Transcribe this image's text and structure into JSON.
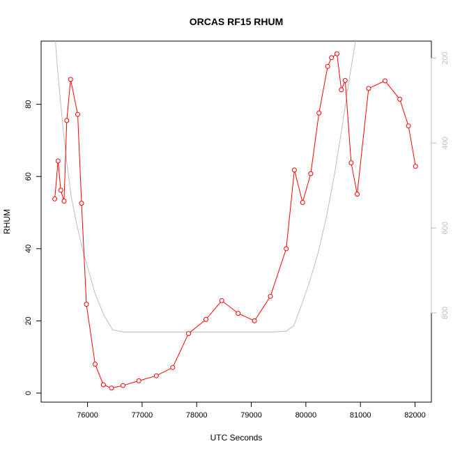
{
  "chart_data": {
    "type": "line",
    "title": "ORCAS RF15 RHUM",
    "xlabel": "UTC Seconds",
    "ylabel": "RHUM",
    "xlim": [
      75150,
      82300
    ],
    "ylim": [
      -2.5,
      97.5
    ],
    "x_ticks": [
      76000,
      77000,
      78000,
      79000,
      80000,
      81000,
      82000
    ],
    "y_ticks": [
      0,
      20,
      40,
      60,
      80
    ],
    "colors": {
      "series": "#ff0000",
      "secondary": "#bdbdbd"
    },
    "series": [
      {
        "color": "#ff0000",
        "marker": "open-circle",
        "x": [
          75400,
          75460,
          75510,
          75570,
          75620,
          75690,
          75820,
          75890,
          75980,
          76140,
          76290,
          76440,
          76650,
          76940,
          77260,
          77560,
          77850,
          78170,
          78460,
          78760,
          79060,
          79350,
          79640,
          79790,
          79940,
          80090,
          80240,
          80400,
          80470,
          80570,
          80650,
          80720,
          80830,
          80940,
          81150,
          81450,
          81720,
          81880,
          82010
        ],
        "y": [
          53.8,
          64.3,
          56.2,
          53.2,
          75.5,
          86.9,
          77.2,
          52.6,
          24.6,
          8.0,
          2.3,
          1.4,
          2.1,
          3.4,
          4.8,
          7.1,
          16.5,
          20.4,
          25.6,
          22.1,
          20.0,
          26.8,
          40.0,
          61.8,
          52.8,
          60.8,
          77.6,
          90.5,
          92.9,
          94.0,
          84.0,
          86.6,
          63.8,
          55.1,
          84.4,
          86.5,
          81.4,
          74.0,
          62.8
        ]
      }
    ],
    "secondary_axis": {
      "ticks": [
        200,
        400,
        600,
        800
      ],
      "range_top_to_bottom": [
        160,
        1010
      ],
      "inverted": true
    },
    "secondary_series": {
      "color": "#bdbdbd",
      "x": [
        75380,
        75440,
        75500,
        75560,
        75620,
        75700,
        75800,
        75900,
        76020,
        76140,
        76300,
        76460,
        76660,
        77000,
        77400,
        77800,
        78200,
        78600,
        79000,
        79400,
        79640,
        79780,
        79930,
        80080,
        80230,
        80380,
        80520,
        80660,
        80790,
        80920,
        81000
      ],
      "y": [
        100,
        210,
        295,
        375,
        445,
        525,
        590,
        645,
        700,
        755,
        805,
        840,
        845,
        845,
        845,
        845,
        845,
        845,
        845,
        845,
        843,
        830,
        778,
        722,
        656,
        572,
        477,
        365,
        254,
        153,
        100
      ]
    }
  }
}
